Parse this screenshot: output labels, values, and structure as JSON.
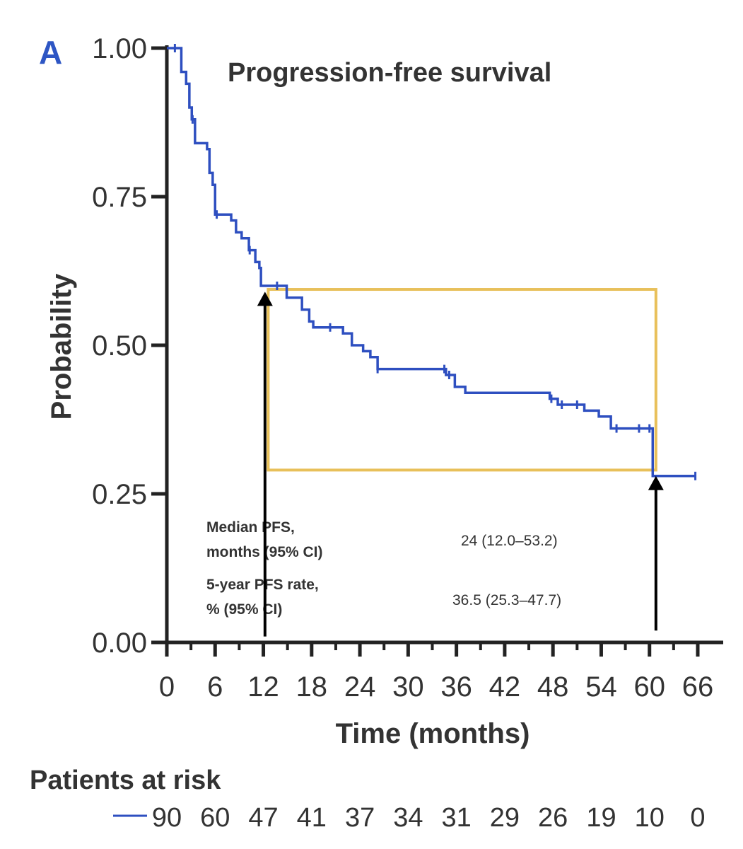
{
  "chart_data": {
    "type": "line",
    "panel_label": "A",
    "title": "Progression-free survival",
    "xlabel": "Time (months)",
    "ylabel": "Probability",
    "xlim": [
      0,
      66
    ],
    "ylim": [
      0,
      1
    ],
    "x_ticks": [
      0,
      6,
      12,
      18,
      24,
      30,
      36,
      42,
      48,
      54,
      60,
      66
    ],
    "y_ticks": [
      0.0,
      0.25,
      0.5,
      0.75,
      1.0
    ],
    "y_tick_labels": [
      "0.00",
      "0.25",
      "0.50",
      "0.75",
      "1.00"
    ],
    "grid": false,
    "colors": {
      "curve": "#2e4fc0",
      "highlight_box": "#e8c05a",
      "arrows": "#000000",
      "axis": "#222222"
    },
    "series": [
      {
        "type": "step",
        "points": [
          [
            0,
            1.0
          ],
          [
            1.5,
            1.0
          ],
          [
            1.8,
            0.96
          ],
          [
            2.4,
            0.94
          ],
          [
            2.8,
            0.9
          ],
          [
            3.1,
            0.88
          ],
          [
            3.5,
            0.84
          ],
          [
            5.0,
            0.83
          ],
          [
            5.3,
            0.79
          ],
          [
            5.7,
            0.77
          ],
          [
            6.0,
            0.72
          ],
          [
            8.0,
            0.71
          ],
          [
            8.6,
            0.69
          ],
          [
            9.3,
            0.68
          ],
          [
            10.2,
            0.66
          ],
          [
            11.0,
            0.64
          ],
          [
            11.5,
            0.63
          ],
          [
            11.7,
            0.6
          ],
          [
            14.9,
            0.58
          ],
          [
            16.8,
            0.56
          ],
          [
            17.7,
            0.54
          ],
          [
            18.2,
            0.53
          ],
          [
            21.9,
            0.52
          ],
          [
            23.0,
            0.5
          ],
          [
            24.4,
            0.49
          ],
          [
            25.3,
            0.48
          ],
          [
            26.2,
            0.46
          ],
          [
            34.7,
            0.45
          ],
          [
            35.8,
            0.43
          ],
          [
            37.1,
            0.42
          ],
          [
            47.6,
            0.41
          ],
          [
            48.6,
            0.4
          ],
          [
            51.9,
            0.39
          ],
          [
            53.7,
            0.38
          ],
          [
            55.2,
            0.36
          ],
          [
            60.4,
            0.28
          ],
          [
            65.7,
            0.28
          ]
        ],
        "censor_marks": [
          1.0,
          3.2,
          6.2,
          10.3,
          13.7,
          20.3,
          26.2,
          34.5,
          35.1,
          47.8,
          49.1,
          51.0,
          55.9,
          58.7,
          60.0,
          65.7
        ]
      }
    ],
    "highlight_box": {
      "x_range": [
        12.6,
        60.8
      ],
      "y_range": [
        0.29,
        0.594
      ]
    },
    "arrows": [
      {
        "x": 12.2,
        "from_y": 0.01,
        "to_y": 0.59
      },
      {
        "x": 60.8,
        "from_y": 0.02,
        "to_y": 0.28
      }
    ],
    "annotations": [
      {
        "label_lines": [
          "Median PFS,",
          "months (95% CI)"
        ],
        "value": "24 (12.0–53.2)"
      },
      {
        "label_lines": [
          "5-year PFS rate,",
          "% (95% CI)"
        ],
        "value": "36.5 (25.3–47.7)"
      }
    ],
    "risk_table": {
      "title": "Patients at risk",
      "times": [
        0,
        6,
        12,
        18,
        24,
        30,
        36,
        42,
        48,
        54,
        60,
        66
      ],
      "counts": [
        "90",
        "60",
        "47",
        "41",
        "37",
        "34",
        "31",
        "29",
        "26",
        "19",
        "10",
        "0"
      ]
    }
  }
}
